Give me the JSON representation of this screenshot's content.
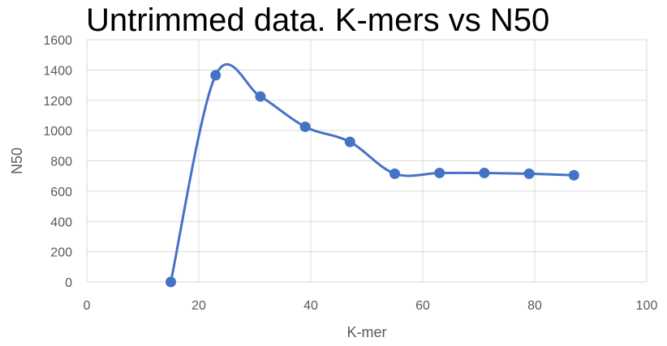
{
  "chart_data": {
    "type": "scatter",
    "title": "Untrimmed data. K-mers vs N50",
    "xlabel": "K-mer",
    "ylabel": "N50",
    "xlim": [
      0,
      100
    ],
    "ylim": [
      0,
      1600
    ],
    "x_ticks": [
      0,
      20,
      40,
      60,
      80,
      100
    ],
    "y_ticks": [
      0,
      200,
      400,
      600,
      800,
      1000,
      1200,
      1400,
      1600
    ],
    "x_tick_labels": [
      "0",
      "20",
      "40",
      "60",
      "80",
      "100"
    ],
    "y_tick_labels": [
      "0",
      "200",
      "400",
      "600",
      "800",
      "1000",
      "1200",
      "1400",
      "1600"
    ],
    "grid": true,
    "smooth_line": true,
    "series_color": "#4472C4",
    "series": [
      {
        "x": [
          15,
          23,
          31,
          39,
          47,
          55,
          63,
          71,
          79,
          87
        ],
        "y": [
          0,
          1365,
          1225,
          1025,
          925,
          715,
          720,
          720,
          715,
          705
        ]
      }
    ]
  }
}
